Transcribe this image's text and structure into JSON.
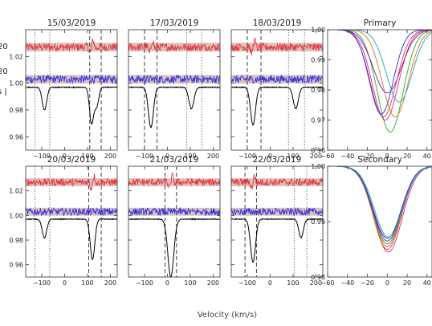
{
  "figure": {
    "xlabel": "Velocity (km/s)",
    "left_axis_fragments": [
      {
        "text": "20",
        "color": "#e8383c"
      },
      {
        "text": "20",
        "color": "#4a4ad8"
      },
      {
        "text": "s |",
        "color": "#222222"
      }
    ]
  },
  "colors": {
    "red": "#e8383c",
    "blue": "#3a34e0",
    "black": "#000000",
    "band": "#d9c2bd",
    "axis": "#333333"
  },
  "chart_data": [
    {
      "type": "line",
      "title": "15/03/2019",
      "xlim": [
        -170,
        230
      ],
      "ylim": [
        0.95,
        1.04
      ],
      "xticks": [
        -100,
        0,
        100,
        200
      ],
      "yticks": [
        0.96,
        0.98,
        1.0,
        1.02
      ],
      "show_yticks": true,
      "residual_levels": {
        "red": 1.027,
        "blue": 1.003
      },
      "baseline": 0.997,
      "absorption": [
        {
          "v": -88,
          "depth": 0.017,
          "width": 10
        },
        {
          "v": 118,
          "depth": 0.027,
          "width": 9
        },
        {
          "v": 140,
          "depth": 0.014,
          "width": 9
        }
      ],
      "dashed_lines": [
        110,
        160
      ],
      "dotted_lines": [
        -130,
        -65
      ]
    },
    {
      "type": "line",
      "title": "17/03/2019",
      "xlim": [
        -170,
        230
      ],
      "ylim": [
        0.95,
        1.04
      ],
      "xticks": [
        -100,
        0,
        100,
        200
      ],
      "yticks": [
        0.96,
        0.98,
        1.0,
        1.02
      ],
      "show_yticks": false,
      "residual_levels": {
        "red": 1.027,
        "blue": 1.003
      },
      "baseline": 0.997,
      "absorption": [
        {
          "v": -72,
          "depth": 0.03,
          "width": 11
        },
        {
          "v": 105,
          "depth": 0.016,
          "width": 11
        }
      ],
      "dashed_lines": [
        -100,
        -45
      ],
      "dotted_lines": [
        85,
        150
      ]
    },
    {
      "type": "line",
      "title": "18/03/2019",
      "xlim": [
        -170,
        230
      ],
      "ylim": [
        0.95,
        1.04
      ],
      "xticks": [
        -100,
        0,
        100,
        200
      ],
      "yticks": [
        0.96,
        0.98,
        1.0,
        1.02
      ],
      "show_yticks": false,
      "residual_levels": {
        "red": 1.027,
        "blue": 1.003
      },
      "baseline": 0.997,
      "absorption": [
        {
          "v": -75,
          "depth": 0.028,
          "width": 11
        },
        {
          "v": 112,
          "depth": 0.016,
          "width": 11
        }
      ],
      "dashed_lines": [
        -100,
        -40
      ],
      "dotted_lines": [
        80,
        150
      ]
    },
    {
      "type": "line",
      "title": "20/03/2019",
      "xlim": [
        -170,
        230
      ],
      "ylim": [
        0.95,
        1.04
      ],
      "xticks": [
        -100,
        0,
        100,
        200
      ],
      "yticks": [
        0.96,
        0.98,
        1.0,
        1.02
      ],
      "show_yticks": true,
      "residual_levels": {
        "red": 1.027,
        "blue": 1.003
      },
      "baseline": 0.997,
      "absorption": [
        {
          "v": -88,
          "depth": 0.015,
          "width": 10
        },
        {
          "v": 122,
          "depth": 0.033,
          "width": 10
        }
      ],
      "dashed_lines": [
        105,
        160
      ],
      "dotted_lines": [
        -130,
        -65
      ]
    },
    {
      "type": "line",
      "title": "21/03/2019",
      "xlim": [
        -170,
        230
      ],
      "ylim": [
        0.95,
        1.04
      ],
      "xticks": [
        -100,
        0,
        100,
        200
      ],
      "yticks": [
        0.96,
        0.98,
        1.0,
        1.02
      ],
      "show_yticks": false,
      "residual_levels": {
        "red": 1.027,
        "blue": 1.003
      },
      "baseline": 0.997,
      "absorption": [
        {
          "v": 15,
          "depth": 0.047,
          "width": 13
        }
      ],
      "dashed_lines": [
        -10,
        40
      ],
      "dotted_lines": []
    },
    {
      "type": "line",
      "title": "22/03/2019",
      "xlim": [
        -170,
        230
      ],
      "ylim": [
        0.95,
        1.04
      ],
      "xticks": [
        -100,
        0,
        100,
        200
      ],
      "yticks": [
        0.96,
        0.98,
        1.0,
        1.02
      ],
      "show_yticks": false,
      "residual_levels": {
        "red": 1.027,
        "blue": 1.003
      },
      "baseline": 0.997,
      "absorption": [
        {
          "v": -75,
          "depth": 0.035,
          "width": 11
        },
        {
          "v": 135,
          "depth": 0.015,
          "width": 10
        }
      ],
      "dashed_lines": [
        -110,
        -60
      ],
      "dotted_lines": [
        105,
        160
      ]
    },
    {
      "type": "line",
      "title": "Primary",
      "xlim": [
        -60,
        45
      ],
      "ylim": [
        0.96,
        1.0
      ],
      "xticks": [
        -60,
        -40,
        -20,
        0,
        20,
        40
      ],
      "yticks": [
        0.96,
        0.97,
        0.98,
        0.99,
        1.0
      ],
      "series": [
        {
          "color": "#22aa22",
          "center": 3,
          "depth": 0.034,
          "sigma": 13
        },
        {
          "color": "#d02a9a",
          "center": -2,
          "depth": 0.03,
          "sigma": 13
        },
        {
          "color": "#e8383c",
          "center": -4,
          "depth": 0.029,
          "sigma": 13
        },
        {
          "color": "#2a2ae0",
          "center": -6,
          "depth": 0.028,
          "sigma": 12
        },
        {
          "color": "#e07020",
          "center": 8,
          "depth": 0.029,
          "sigma": 13
        },
        {
          "color": "#7a1aa0",
          "center": 0,
          "depth": 0.021,
          "sigma": 14
        },
        {
          "color": "#1aa8b0",
          "center": 12,
          "depth": 0.024,
          "sigma": 13
        }
      ]
    },
    {
      "type": "line",
      "title": "Secondary",
      "xlim": [
        -60,
        45
      ],
      "ylim": [
        0.98,
        1.0
      ],
      "xticks": [
        -60,
        -40,
        -20,
        0,
        20,
        40
      ],
      "yticks": [
        0.98,
        0.99,
        1.0
      ],
      "series": [
        {
          "color": "#d02a9a",
          "center": 1,
          "depth": 0.0155,
          "sigma": 14
        },
        {
          "color": "#e8383c",
          "center": 0,
          "depth": 0.015,
          "sigma": 14
        },
        {
          "color": "#e07020",
          "center": 0,
          "depth": 0.0145,
          "sigma": 14
        },
        {
          "color": "#22aa22",
          "center": 0,
          "depth": 0.014,
          "sigma": 14
        },
        {
          "color": "#7a1aa0",
          "center": 0,
          "depth": 0.0135,
          "sigma": 14
        },
        {
          "color": "#2a2ae0",
          "center": 0,
          "depth": 0.013,
          "sigma": 14
        },
        {
          "color": "#1aa8b0",
          "center": 1,
          "depth": 0.0128,
          "sigma": 14
        }
      ]
    }
  ]
}
